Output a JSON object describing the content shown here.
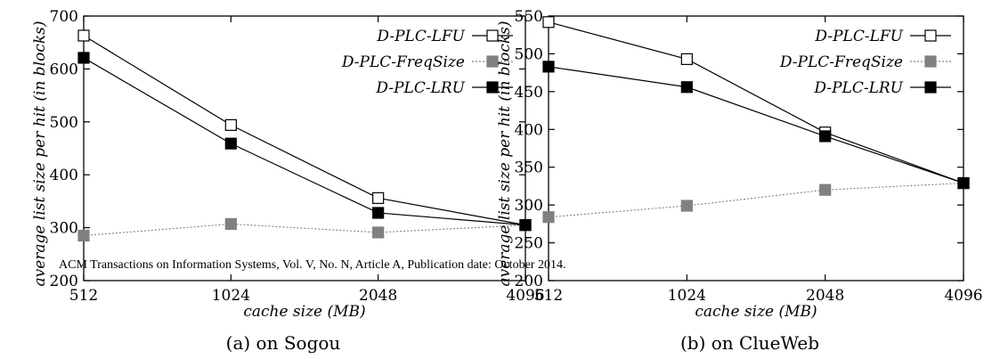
{
  "chart_data": [
    {
      "type": "line",
      "caption": "(a) on Sogou",
      "xlabel": "cache size (MB)",
      "ylabel": "average list size per hit (in blocks)",
      "categories": [
        "512",
        "1024",
        "2048",
        "4096"
      ],
      "x_ticks": [
        "512",
        "1024",
        "2048",
        "4096"
      ],
      "y_ticks": [
        "200",
        "300",
        "400",
        "500",
        "600",
        "700"
      ],
      "ylim": [
        200,
        700
      ],
      "grid": false,
      "legend_position": "top-right",
      "series": [
        {
          "name": "D-PLC-LFU",
          "values": [
            663,
            494,
            356,
            305
          ],
          "marker": "open-square",
          "line": "solid",
          "color": "#000000"
        },
        {
          "name": "D-PLC-FreqSize",
          "values": [
            285,
            307,
            291,
            305
          ],
          "marker": "filled-square",
          "line": "dotted",
          "color": "#808080"
        },
        {
          "name": "D-PLC-LRU",
          "values": [
            621,
            459,
            328,
            305
          ],
          "marker": "filled-square",
          "line": "solid",
          "color": "#000000"
        }
      ]
    },
    {
      "type": "line",
      "caption": "(b) on ClueWeb",
      "xlabel": "cache size (MB)",
      "ylabel": "average list size per hit (in blocks)",
      "categories": [
        "512",
        "1024",
        "2048",
        "4096"
      ],
      "x_ticks": [
        "512",
        "1024",
        "2048",
        "4096"
      ],
      "y_ticks": [
        "200",
        "250",
        "300",
        "350",
        "400",
        "450",
        "500",
        "550"
      ],
      "ylim": [
        200,
        550
      ],
      "grid": false,
      "legend_position": "top-right",
      "series": [
        {
          "name": "D-PLC-LFU",
          "values": [
            542,
            493,
            396,
            329
          ],
          "marker": "open-square",
          "line": "solid",
          "color": "#000000"
        },
        {
          "name": "D-PLC-FreqSize",
          "values": [
            284,
            299,
            320,
            329
          ],
          "marker": "filled-square",
          "line": "dotted",
          "color": "#808080"
        },
        {
          "name": "D-PLC-LRU",
          "values": [
            483,
            456,
            391,
            329
          ],
          "marker": "filled-square",
          "line": "solid",
          "color": "#000000"
        }
      ]
    }
  ],
  "footer_text": "ACM Transactions on Information Systems, Vol. V, No. N, Article A, Publication date: October 2014."
}
